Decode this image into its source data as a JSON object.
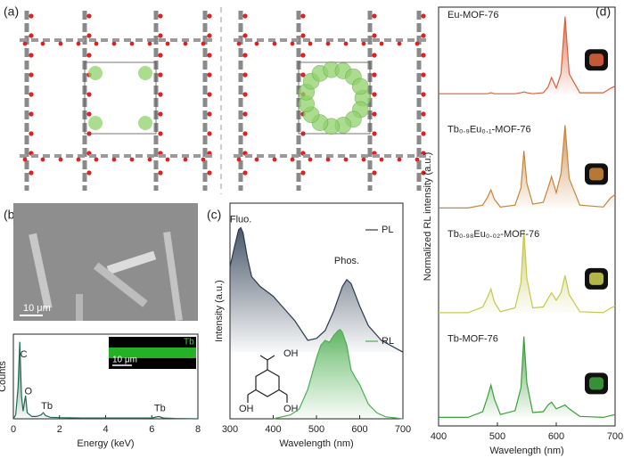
{
  "panel_labels": [
    "(a)",
    "(b)",
    "(c)",
    "(d)"
  ],
  "chart_data": [
    {
      "type": "line",
      "x_label": "Energy (keV)",
      "y_label": "Counts",
      "xlim": [
        0,
        8
      ],
      "xticks": [
        0,
        2,
        4,
        6,
        8
      ],
      "ylim": [
        0,
        1.1
      ],
      "series": [
        {
          "color": "#1f6b4f",
          "x": [
            0,
            0.1,
            0.2,
            0.28,
            0.35,
            0.42,
            0.5,
            0.53,
            0.6,
            0.8,
            1.0,
            1.2,
            1.3,
            1.4,
            1.6,
            2,
            3,
            4,
            5,
            6,
            6.3,
            6.5,
            7,
            8
          ],
          "values": [
            0,
            0.05,
            0.4,
            1.0,
            0.3,
            0.1,
            0.25,
            0.3,
            0.08,
            0.03,
            0.03,
            0.05,
            0.08,
            0.04,
            0.02,
            0.015,
            0.01,
            0.01,
            0.01,
            0.01,
            0.03,
            0.01,
            0.005,
            0
          ]
        }
      ],
      "annotations": [
        {
          "text": "C",
          "x": 0.45,
          "y": 0.83
        },
        {
          "text": "O",
          "x": 0.65,
          "y": 0.35
        },
        {
          "text": "Tb",
          "x": 1.45,
          "y": 0.16
        },
        {
          "text": "Tb",
          "x": 6.35,
          "y": 0.13
        }
      ],
      "scale_bar_labels": [
        "10 μm",
        "10 μm"
      ],
      "inset_label": "Tb"
    },
    {
      "type": "line",
      "x_label": "Wavelength (nm)",
      "y_label": "Intensity (a.u.)",
      "xlim": [
        300,
        700
      ],
      "xticks": [
        300,
        400,
        500,
        600,
        700
      ],
      "ylim": [
        0,
        2.2
      ],
      "series": [
        {
          "name": "PL",
          "color": "#2b3a4f",
          "x": [
            300,
            310,
            320,
            325,
            330,
            340,
            350,
            370,
            400,
            420,
            450,
            480,
            500,
            520,
            540,
            560,
            570,
            580,
            600,
            620,
            650,
            700
          ],
          "values": [
            1.55,
            1.75,
            1.93,
            1.95,
            1.9,
            1.65,
            1.45,
            1.35,
            1.25,
            1.15,
            1.0,
            0.8,
            0.82,
            0.9,
            1.1,
            1.35,
            1.42,
            1.38,
            1.15,
            0.95,
            0.8,
            0.68
          ]
        },
        {
          "name": "RL",
          "color": "#4caf50",
          "x": [
            400,
            420,
            440,
            460,
            480,
            500,
            510,
            520,
            530,
            540,
            550,
            555,
            560,
            570,
            580,
            590,
            600,
            620,
            640,
            660,
            680,
            700
          ],
          "values": [
            0,
            0.02,
            0.04,
            0.1,
            0.3,
            0.62,
            0.75,
            0.8,
            0.78,
            0.85,
            0.9,
            0.91,
            0.88,
            0.75,
            0.5,
            0.42,
            0.35,
            0.15,
            0.06,
            0.02,
            0.01,
            0
          ]
        }
      ],
      "annotations": [
        {
          "text": "Fluo.",
          "x": 325,
          "y": 2.03
        },
        {
          "text": "Phos.",
          "x": 570,
          "y": 1.61
        }
      ],
      "molecule_labels": [
        "OH",
        "OH",
        "OH"
      ]
    },
    {
      "type": "line",
      "x_label": "Wavelength (nm)",
      "y_label": "Normalized RL intensity (a.u.)",
      "xlim": [
        400,
        700
      ],
      "xticks": [
        400,
        500,
        600,
        700
      ],
      "ylim": [
        0,
        4.4
      ],
      "x": [
        400,
        450,
        475,
        483,
        489,
        495,
        505,
        530,
        540,
        545,
        550,
        560,
        578,
        586,
        592,
        600,
        608,
        615,
        622,
        640,
        680,
        693,
        700
      ],
      "series": [
        {
          "name": "Eu-MOF-76",
          "color": "#d9603b",
          "values": [
            3.49,
            3.49,
            3.49,
            3.49,
            3.5,
            3.49,
            3.49,
            3.49,
            3.5,
            3.51,
            3.5,
            3.49,
            3.5,
            3.56,
            3.66,
            3.55,
            3.7,
            4.3,
            3.7,
            3.5,
            3.5,
            3.55,
            3.57
          ]
        },
        {
          "name": "Tb₀.₉Eu₀.₁-MOF-76",
          "color": "#c9843a",
          "values": [
            2.29,
            2.29,
            2.32,
            2.4,
            2.48,
            2.38,
            2.3,
            2.32,
            2.5,
            2.89,
            2.55,
            2.33,
            2.35,
            2.5,
            2.62,
            2.45,
            2.65,
            3.16,
            2.6,
            2.32,
            2.3,
            2.4,
            2.43
          ]
        },
        {
          "name": "Tb₀.₉₈Eu₀.₀₂-MOF-76",
          "color": "#c4c84e",
          "values": [
            1.19,
            1.19,
            1.25,
            1.35,
            1.44,
            1.3,
            1.2,
            1.24,
            1.5,
            2.06,
            1.55,
            1.24,
            1.25,
            1.34,
            1.4,
            1.32,
            1.4,
            1.58,
            1.38,
            1.2,
            1.19,
            1.24,
            1.26
          ]
        },
        {
          "name": "Tb-MOF-76",
          "color": "#3c9e3c",
          "values": [
            0.09,
            0.09,
            0.15,
            0.3,
            0.43,
            0.28,
            0.12,
            0.16,
            0.4,
            0.94,
            0.45,
            0.14,
            0.15,
            0.22,
            0.25,
            0.18,
            0.2,
            0.22,
            0.18,
            0.1,
            0.09,
            0.11,
            0.12
          ]
        }
      ]
    }
  ]
}
